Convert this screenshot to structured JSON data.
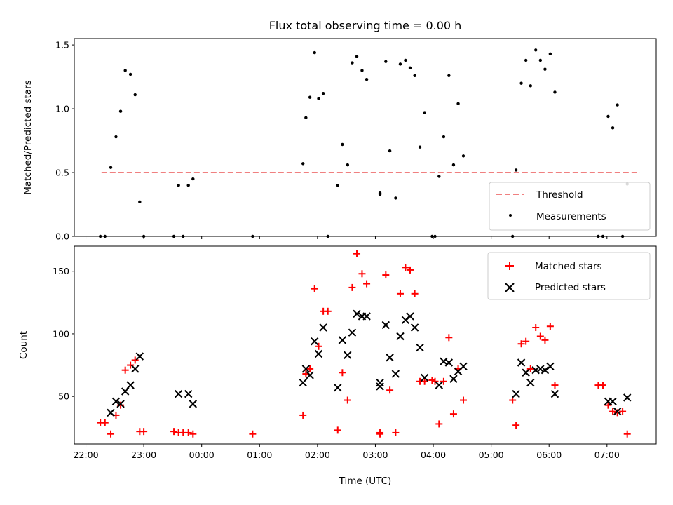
{
  "title": "Flux total observing time = 0.00 h",
  "x_axis": {
    "label": "Time (UTC)",
    "tick_labels": [
      "22:00",
      "23:00",
      "00:00",
      "01:00",
      "02:00",
      "03:00",
      "04:00",
      "05:00",
      "06:00",
      "07:00"
    ]
  },
  "colors": {
    "threshold": "#f08080",
    "measurements": "#000000",
    "matched": "#ff0000",
    "predicted": "#000000"
  },
  "chart_data": [
    {
      "type": "scatter",
      "ylabel": "Matched/Predicted stars",
      "x_unit": "hours after 22:00 UTC",
      "xlim": [
        -0.2,
        9.85
      ],
      "ylim": [
        0,
        1.55
      ],
      "yticks": [
        0,
        0.5,
        1.0,
        1.5
      ],
      "ytick_labels": [
        "0.0",
        "0.5",
        "1.0",
        "1.5"
      ],
      "legend_position": "lower right",
      "threshold": {
        "name": "Threshold",
        "value": 0.5,
        "x_range": [
          0.27,
          9.57
        ]
      },
      "series": [
        {
          "name": "Measurements",
          "points": [
            [
              0.25,
              0
            ],
            [
              0.33,
              0
            ],
            [
              0.43,
              0.54
            ],
            [
              0.52,
              0.78
            ],
            [
              0.6,
              0.98
            ],
            [
              0.68,
              1.3
            ],
            [
              0.77,
              1.27
            ],
            [
              0.85,
              1.11
            ],
            [
              0.93,
              0.27
            ],
            [
              1.0,
              0
            ],
            [
              1.52,
              0
            ],
            [
              1.6,
              0.4
            ],
            [
              1.68,
              0
            ],
            [
              1.77,
              0.4
            ],
            [
              1.85,
              0.45
            ],
            [
              2.88,
              0
            ],
            [
              3.75,
              0.57
            ],
            [
              3.8,
              0.93
            ],
            [
              3.87,
              1.09
            ],
            [
              3.95,
              1.44
            ],
            [
              4.02,
              1.08
            ],
            [
              4.1,
              1.12
            ],
            [
              4.18,
              0
            ],
            [
              4.35,
              0.4
            ],
            [
              4.43,
              0.72
            ],
            [
              4.52,
              0.56
            ],
            [
              4.6,
              1.36
            ],
            [
              4.68,
              1.41
            ],
            [
              4.77,
              1.3
            ],
            [
              4.85,
              1.23
            ],
            [
              5.08,
              0.33
            ],
            [
              5.08,
              0.34
            ],
            [
              5.18,
              1.37
            ],
            [
              5.25,
              0.67
            ],
            [
              5.35,
              0.3
            ],
            [
              5.43,
              1.35
            ],
            [
              5.52,
              1.38
            ],
            [
              5.6,
              1.32
            ],
            [
              5.68,
              1.26
            ],
            [
              5.77,
              0.7
            ],
            [
              5.85,
              0.97
            ],
            [
              5.98,
              0
            ],
            [
              6.03,
              0
            ],
            [
              6.1,
              0.47
            ],
            [
              6.18,
              0.78
            ],
            [
              6.27,
              1.26
            ],
            [
              6.35,
              0.56
            ],
            [
              6.43,
              1.04
            ],
            [
              6.52,
              0.63
            ],
            [
              7.37,
              0
            ],
            [
              7.43,
              0.52
            ],
            [
              7.52,
              1.2
            ],
            [
              7.6,
              1.38
            ],
            [
              7.68,
              1.18
            ],
            [
              7.77,
              1.46
            ],
            [
              7.85,
              1.38
            ],
            [
              7.93,
              1.31
            ],
            [
              8.02,
              1.43
            ],
            [
              8.1,
              1.13
            ],
            [
              8.85,
              0
            ],
            [
              8.93,
              0
            ],
            [
              9.02,
              0.94
            ],
            [
              9.1,
              0.85
            ],
            [
              9.18,
              1.03
            ],
            [
              9.27,
              0
            ],
            [
              9.35,
              0.41
            ]
          ]
        }
      ]
    },
    {
      "type": "scatter",
      "ylabel": "Count",
      "x_unit": "hours after 22:00 UTC",
      "xlim": [
        -0.2,
        9.85
      ],
      "ylim": [
        12,
        170
      ],
      "yticks": [
        50,
        100,
        150
      ],
      "ytick_labels": [
        "50",
        "100",
        "150"
      ],
      "legend_position": "upper right",
      "series": [
        {
          "name": "Matched stars",
          "marker": "plus",
          "points": [
            [
              0.25,
              29
            ],
            [
              0.33,
              29
            ],
            [
              0.43,
              20
            ],
            [
              0.52,
              35
            ],
            [
              0.6,
              43
            ],
            [
              0.68,
              71
            ],
            [
              0.77,
              75
            ],
            [
              0.85,
              79
            ],
            [
              0.93,
              22
            ],
            [
              1.0,
              22
            ],
            [
              1.52,
              22
            ],
            [
              1.6,
              21
            ],
            [
              1.68,
              21
            ],
            [
              1.77,
              21
            ],
            [
              1.85,
              20
            ],
            [
              2.88,
              20
            ],
            [
              3.75,
              35
            ],
            [
              3.8,
              68
            ],
            [
              3.87,
              72
            ],
            [
              3.95,
              136
            ],
            [
              4.02,
              90
            ],
            [
              4.1,
              118
            ],
            [
              4.18,
              118
            ],
            [
              4.35,
              23
            ],
            [
              4.43,
              69
            ],
            [
              4.52,
              47
            ],
            [
              4.6,
              137
            ],
            [
              4.68,
              164
            ],
            [
              4.77,
              148
            ],
            [
              4.85,
              140
            ],
            [
              5.08,
              20
            ],
            [
              5.08,
              21
            ],
            [
              5.18,
              147
            ],
            [
              5.25,
              55
            ],
            [
              5.35,
              21
            ],
            [
              5.43,
              132
            ],
            [
              5.52,
              153
            ],
            [
              5.6,
              151
            ],
            [
              5.68,
              132
            ],
            [
              5.77,
              62
            ],
            [
              5.85,
              62
            ],
            [
              5.98,
              63
            ],
            [
              6.03,
              62
            ],
            [
              6.1,
              28
            ],
            [
              6.18,
              62
            ],
            [
              6.27,
              97
            ],
            [
              6.35,
              36
            ],
            [
              6.43,
              72
            ],
            [
              6.52,
              47
            ],
            [
              7.37,
              47
            ],
            [
              7.43,
              27
            ],
            [
              7.52,
              92
            ],
            [
              7.6,
              94
            ],
            [
              7.68,
              72
            ],
            [
              7.77,
              105
            ],
            [
              7.85,
              98
            ],
            [
              7.93,
              95
            ],
            [
              8.02,
              106
            ],
            [
              8.1,
              59
            ],
            [
              8.85,
              59
            ],
            [
              8.93,
              59
            ],
            [
              9.02,
              43
            ],
            [
              9.1,
              38
            ],
            [
              9.18,
              37
            ],
            [
              9.27,
              38
            ],
            [
              9.35,
              20
            ]
          ]
        },
        {
          "name": "Predicted stars",
          "marker": "x",
          "points": [
            [
              0.43,
              37
            ],
            [
              0.52,
              46
            ],
            [
              0.6,
              44
            ],
            [
              0.68,
              54
            ],
            [
              0.77,
              59
            ],
            [
              0.85,
              72
            ],
            [
              0.93,
              82
            ],
            [
              1.6,
              52
            ],
            [
              1.77,
              52
            ],
            [
              1.85,
              44
            ],
            [
              3.75,
              61
            ],
            [
              3.8,
              72
            ],
            [
              3.87,
              67
            ],
            [
              3.95,
              94
            ],
            [
              4.02,
              84
            ],
            [
              4.1,
              105
            ],
            [
              4.35,
              57
            ],
            [
              4.43,
              95
            ],
            [
              4.52,
              83
            ],
            [
              4.6,
              101
            ],
            [
              4.68,
              116
            ],
            [
              4.77,
              114
            ],
            [
              4.85,
              114
            ],
            [
              5.08,
              61
            ],
            [
              5.08,
              58
            ],
            [
              5.18,
              107
            ],
            [
              5.25,
              81
            ],
            [
              5.35,
              68
            ],
            [
              5.43,
              98
            ],
            [
              5.52,
              111
            ],
            [
              5.6,
              114
            ],
            [
              5.68,
              105
            ],
            [
              5.77,
              89
            ],
            [
              5.85,
              65
            ],
            [
              6.1,
              59
            ],
            [
              6.18,
              78
            ],
            [
              6.27,
              77
            ],
            [
              6.35,
              64
            ],
            [
              6.43,
              70
            ],
            [
              6.52,
              74
            ],
            [
              7.43,
              52
            ],
            [
              7.52,
              77
            ],
            [
              7.6,
              69
            ],
            [
              7.68,
              61
            ],
            [
              7.77,
              71
            ],
            [
              7.85,
              72
            ],
            [
              7.93,
              71
            ],
            [
              8.02,
              74
            ],
            [
              8.1,
              52
            ],
            [
              9.02,
              46
            ],
            [
              9.1,
              46
            ],
            [
              9.18,
              38
            ],
            [
              9.35,
              49
            ]
          ]
        }
      ]
    }
  ]
}
